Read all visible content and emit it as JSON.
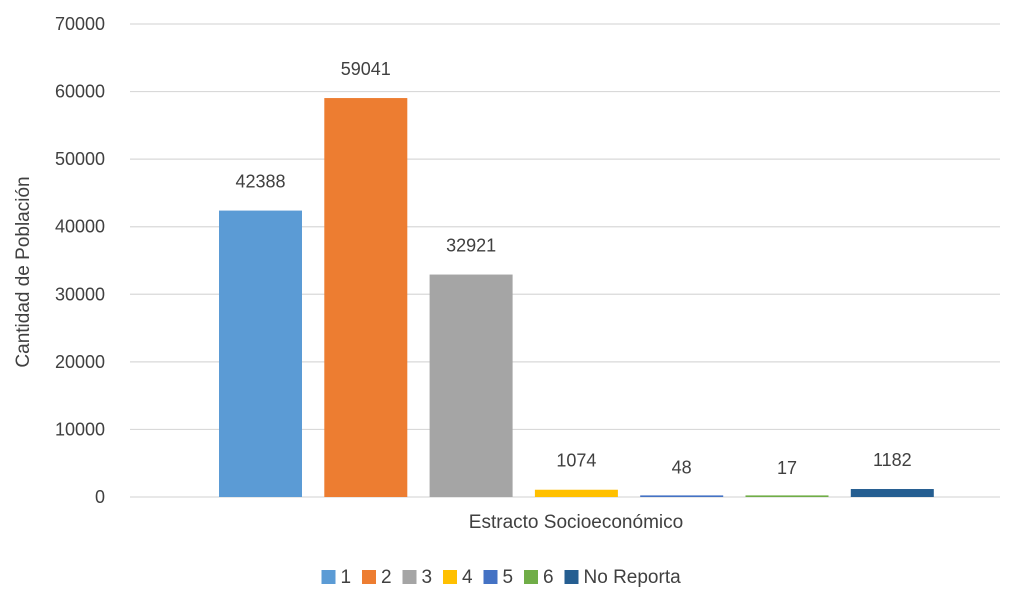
{
  "chart_data": {
    "type": "bar",
    "title": "",
    "xlabel": "Estracto Socioeconómico",
    "ylabel": "Cantidad de Población",
    "ylim": [
      0,
      70000
    ],
    "yticks": [
      0,
      10000,
      20000,
      30000,
      40000,
      50000,
      60000,
      70000
    ],
    "grid": true,
    "legend_position": "bottom",
    "series": [
      {
        "name": "1",
        "value": 42388,
        "color": "#5B9BD5"
      },
      {
        "name": "2",
        "value": 59041,
        "color": "#ED7D31"
      },
      {
        "name": "3",
        "value": 32921,
        "color": "#A5A5A5"
      },
      {
        "name": "4",
        "value": 1074,
        "color": "#FFC000"
      },
      {
        "name": "5",
        "value": 48,
        "color": "#4472C4"
      },
      {
        "name": "6",
        "value": 17,
        "color": "#70AD47"
      },
      {
        "name": "No Reporta",
        "value": 1182,
        "color": "#255E91"
      }
    ]
  }
}
